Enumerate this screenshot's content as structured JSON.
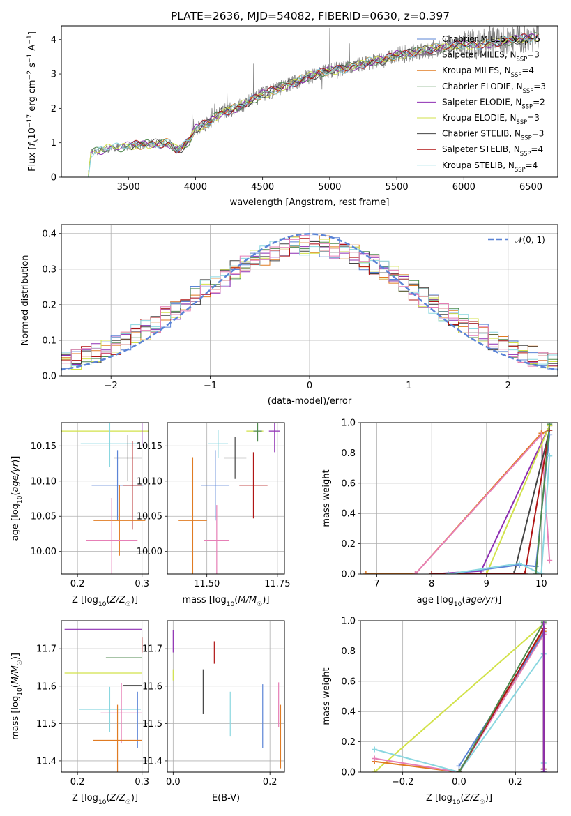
{
  "title": "PLATE=2636, MJD=54082, FIBERID=0630, z=0.397",
  "colors": {
    "grey": "#7f7f7f",
    "blue": "#5b84d6",
    "orange": "#e07b22",
    "green": "#4f8a4f",
    "purple": "#8e2fb3",
    "yellow": "#d2e24a",
    "dark": "#444444",
    "red": "#b01515",
    "cyan": "#8ad7e0",
    "pink": "#e67fb6"
  },
  "chart_data": [
    {
      "id": "spectrum",
      "type": "line",
      "xlabel": "wavelength [Angstrom, rest frame]",
      "ylabel": "Flux [f_λ10^-17 erg cm^-2 s^-1 A^-1]",
      "xlim": [
        3000,
        6700
      ],
      "ylim": [
        0,
        4.4
      ],
      "xticks": [
        "3500",
        "4000",
        "4500",
        "5000",
        "5500",
        "6000",
        "6500"
      ],
      "yticks": [
        "0",
        "1",
        "2",
        "3",
        "4"
      ],
      "grid": false,
      "legend_position": "right",
      "legend": [
        {
          "label": "Chabrier MILES, N_SSP=5",
          "color": "blue"
        },
        {
          "label": "Salpeter MILES, N_SSP=3",
          "color": "grey"
        },
        {
          "label": "Kroupa MILES, N_SSP=4",
          "color": "orange"
        },
        {
          "label": "Chabrier ELODIE, N_SSP=3",
          "color": "green"
        },
        {
          "label": "Salpeter ELODIE, N_SSP=2",
          "color": "purple"
        },
        {
          "label": "Kroupa ELODIE, N_SSP=3",
          "color": "yellow"
        },
        {
          "label": "Chabrier STELIB, N_SSP=3",
          "color": "dark"
        },
        {
          "label": "Salpeter STELIB, N_SSP=4",
          "color": "red"
        },
        {
          "label": "Kroupa STELIB, N_SSP=4",
          "color": "cyan"
        }
      ],
      "model_envelope": [
        [
          3200,
          0.0
        ],
        [
          3220,
          0.7
        ],
        [
          3300,
          0.8
        ],
        [
          3400,
          0.85
        ],
        [
          3500,
          0.9
        ],
        [
          3600,
          0.95
        ],
        [
          3700,
          0.97
        ],
        [
          3800,
          1.0
        ],
        [
          3850,
          0.8
        ],
        [
          3900,
          0.85
        ],
        [
          3950,
          1.05
        ],
        [
          4000,
          1.4
        ],
        [
          4100,
          1.6
        ],
        [
          4200,
          1.9
        ],
        [
          4300,
          2.0
        ],
        [
          4400,
          2.2
        ],
        [
          4500,
          2.4
        ],
        [
          4600,
          2.55
        ],
        [
          4700,
          2.7
        ],
        [
          4800,
          2.85
        ],
        [
          4900,
          3.0
        ],
        [
          5000,
          3.1
        ],
        [
          5100,
          3.15
        ],
        [
          5200,
          3.25
        ],
        [
          5300,
          3.35
        ],
        [
          5400,
          3.4
        ],
        [
          5500,
          3.55
        ],
        [
          5600,
          3.6
        ],
        [
          5700,
          3.7
        ],
        [
          5800,
          3.75
        ],
        [
          5900,
          3.8
        ],
        [
          6000,
          3.85
        ],
        [
          6100,
          3.85
        ],
        [
          6200,
          3.9
        ],
        [
          6300,
          3.95
        ],
        [
          6400,
          4.0
        ],
        [
          6500,
          4.05
        ],
        [
          6560,
          4.1
        ]
      ]
    },
    {
      "id": "residual-histogram",
      "type": "line",
      "xlabel": "(data-model)/error",
      "ylabel": "Normed distribution",
      "xlim": [
        -2.5,
        2.5
      ],
      "ylim": [
        0,
        0.425
      ],
      "xticks": [
        "−2",
        "−1",
        "0",
        "1",
        "2"
      ],
      "yticks": [
        "0.0",
        "0.1",
        "0.2",
        "0.3",
        "0.4"
      ],
      "grid": true,
      "legend_position": "top-right",
      "reference_label": "𝒩(0, 1)",
      "bin_width": 0.1,
      "series_colors": [
        "blue",
        "orange",
        "green",
        "purple",
        "yellow",
        "dark",
        "red",
        "cyan",
        "pink"
      ]
    },
    {
      "id": "age-vs-Z",
      "type": "scatter",
      "xlabel": "Z [log10(Z/Z☉)]",
      "ylabel": "age  [log10(age/yr)]",
      "xlim": [
        0.175,
        0.31
      ],
      "ylim": [
        9.968,
        10.183
      ],
      "xticks": [
        "0.2",
        "0.3"
      ],
      "yticks": [
        "10.00",
        "10.05",
        "10.10",
        "10.15"
      ],
      "points": [
        {
          "color": "yellow",
          "x": 0.285,
          "y": 10.171,
          "xerr": 0.11,
          "yerr": 0.0
        },
        {
          "color": "green",
          "x": 0.3,
          "y": 10.171,
          "xerr": 0.0,
          "yerr": 0.0
        },
        {
          "color": "cyan",
          "x": 0.25,
          "y": 10.153,
          "xerr": 0.045,
          "yerr": 0.033
        },
        {
          "color": "dark",
          "x": 0.278,
          "y": 10.133,
          "xerr": 0.022,
          "yerr": 0.033
        },
        {
          "color": "blue",
          "x": 0.262,
          "y": 10.094,
          "xerr": 0.04,
          "yerr": 0.05
        },
        {
          "color": "red",
          "x": 0.285,
          "y": 10.094,
          "xerr": 0.015,
          "yerr": 0.063
        },
        {
          "color": "orange",
          "x": 0.265,
          "y": 10.044,
          "xerr": 0.04,
          "yerr": 0.05
        },
        {
          "color": "pink",
          "x": 0.253,
          "y": 10.016,
          "xerr": 0.04,
          "yerr": 0.06
        },
        {
          "color": "purple",
          "x": 0.3,
          "y": 10.171,
          "xerr": 0.0,
          "yerr": 0.02
        }
      ]
    },
    {
      "id": "age-vs-mass",
      "type": "scatter",
      "xlabel": "mass [log10(M/M☉)]",
      "ylabel": "",
      "xlim": [
        11.36,
        11.775
      ],
      "ylim": [
        9.968,
        10.183
      ],
      "xticks": [
        "11.50",
        "11.75"
      ],
      "yticks": [
        "10.00",
        "10.05",
        "10.10",
        "10.15"
      ],
      "points": [
        {
          "color": "yellow",
          "x": 11.67,
          "y": 10.171,
          "xerr": 0.03,
          "yerr": 0.0
        },
        {
          "color": "green",
          "x": 11.68,
          "y": 10.171,
          "xerr": 0.015,
          "yerr": 0.015
        },
        {
          "color": "purple",
          "x": 11.74,
          "y": 10.171,
          "xerr": 0.02,
          "yerr": 0.03
        },
        {
          "color": "cyan",
          "x": 11.54,
          "y": 10.153,
          "xerr": 0.035,
          "yerr": 0.02
        },
        {
          "color": "dark",
          "x": 11.6,
          "y": 10.133,
          "xerr": 0.04,
          "yerr": 0.03
        },
        {
          "color": "blue",
          "x": 11.53,
          "y": 10.094,
          "xerr": 0.05,
          "yerr": 0.05
        },
        {
          "color": "red",
          "x": 11.665,
          "y": 10.094,
          "xerr": 0.05,
          "yerr": 0.047
        },
        {
          "color": "orange",
          "x": 11.45,
          "y": 10.044,
          "xerr": 0.05,
          "yerr": 0.09
        },
        {
          "color": "pink",
          "x": 11.535,
          "y": 10.016,
          "xerr": 0.045,
          "yerr": 0.05
        }
      ]
    },
    {
      "id": "mass-weight-vs-age",
      "type": "line",
      "xlabel": "age  [log10(age/yr)]",
      "ylabel": "mass weight",
      "xlim": [
        6.7,
        10.3
      ],
      "ylim": [
        0,
        1.0
      ],
      "xticks": [
        "7",
        "8",
        "9",
        "10"
      ],
      "yticks": [
        "0.0",
        "0.2",
        "0.4",
        "0.6",
        "0.8",
        "1.0"
      ],
      "grid": true,
      "series": [
        {
          "color": "orange",
          "x": [
            6.8,
            7.7,
            10.0,
            10.15
          ],
          "y": [
            0.0,
            0.0,
            0.93,
            0.95
          ]
        },
        {
          "color": "pink",
          "x": [
            7.7,
            10.0,
            10.15
          ],
          "y": [
            0.0,
            0.92,
            0.09
          ]
        },
        {
          "color": "purple",
          "x": [
            8.0,
            8.9,
            10.15
          ],
          "y": [
            0.0,
            0.02,
            0.98
          ]
        },
        {
          "color": "yellow",
          "x": [
            8.0,
            9.0,
            10.15
          ],
          "y": [
            0.0,
            0.0,
            0.98
          ]
        },
        {
          "color": "dark",
          "x": [
            8.0,
            9.5,
            10.15
          ],
          "y": [
            0.0,
            0.0,
            0.95
          ]
        },
        {
          "color": "red",
          "x": [
            8.0,
            9.7,
            10.15
          ],
          "y": [
            0.0,
            0.0,
            0.95
          ]
        },
        {
          "color": "blue",
          "x": [
            8.3,
            9.6,
            9.9,
            10.15
          ],
          "y": [
            0.0,
            0.06,
            0.05,
            0.92
          ]
        },
        {
          "color": "cyan",
          "x": [
            8.3,
            9.6,
            10.0,
            10.15
          ],
          "y": [
            0.0,
            0.07,
            0.0,
            0.78
          ]
        },
        {
          "color": "green",
          "x": [
            9.9,
            10.15
          ],
          "y": [
            0.0,
            0.99
          ]
        }
      ]
    },
    {
      "id": "mass-vs-Z",
      "type": "scatter",
      "xlabel": "Z [log10(Z/Z☉)]",
      "ylabel": "mass [log10(M/M☉)]",
      "xlim": [
        0.175,
        0.31
      ],
      "ylim": [
        11.37,
        11.775
      ],
      "xticks": [
        "0.2",
        "0.3"
      ],
      "yticks": [
        "11.4",
        "11.5",
        "11.6",
        "11.7"
      ],
      "points": [
        {
          "color": "purple",
          "x": 0.24,
          "y": 11.752,
          "xerr": 0.06,
          "yerr": 0.0
        },
        {
          "color": "red",
          "x": 0.3,
          "y": 11.71,
          "xerr": 0.0,
          "yerr": 0.02
        },
        {
          "color": "green",
          "x": 0.272,
          "y": 11.676,
          "xerr": 0.028,
          "yerr": 0.0
        },
        {
          "color": "yellow",
          "x": 0.24,
          "y": 11.635,
          "xerr": 0.06,
          "yerr": 0.0
        },
        {
          "color": "dark",
          "x": 0.285,
          "y": 11.602,
          "xerr": 0.015,
          "yerr": 0.0
        },
        {
          "color": "cyan",
          "x": 0.25,
          "y": 11.538,
          "xerr": 0.048,
          "yerr": 0.06
        },
        {
          "color": "pink",
          "x": 0.268,
          "y": 11.528,
          "xerr": 0.032,
          "yerr": 0.08
        },
        {
          "color": "blue",
          "x": 0.293,
          "y": 11.51,
          "xerr": 0.0,
          "yerr": 0.075
        },
        {
          "color": "orange",
          "x": 0.262,
          "y": 11.455,
          "xerr": 0.038,
          "yerr": 0.095
        }
      ]
    },
    {
      "id": "mass-vs-ebv",
      "type": "scatter",
      "xlabel": "E(B-V)",
      "ylabel": "",
      "xlim": [
        -0.012,
        0.23
      ],
      "ylim": [
        11.37,
        11.775
      ],
      "xticks": [
        "0.0",
        "0.2"
      ],
      "yticks": [
        "11.4",
        "11.5",
        "11.6",
        "11.7"
      ],
      "points": [
        {
          "color": "purple",
          "x": 0.0,
          "y": 11.72,
          "xerr": 0.0,
          "yerr": 0.03
        },
        {
          "color": "yellow",
          "x": 0.0,
          "y": 11.63,
          "xerr": 0.0,
          "yerr": 0.015
        },
        {
          "color": "red",
          "x": 0.085,
          "y": 11.69,
          "xerr": 0.0,
          "yerr": 0.03
        },
        {
          "color": "dark",
          "x": 0.062,
          "y": 11.585,
          "xerr": 0.0,
          "yerr": 0.06
        },
        {
          "color": "cyan",
          "x": 0.118,
          "y": 11.525,
          "xerr": 0.0,
          "yerr": 0.06
        },
        {
          "color": "blue",
          "x": 0.185,
          "y": 11.52,
          "xerr": 0.0,
          "yerr": 0.085
        },
        {
          "color": "pink",
          "x": 0.218,
          "y": 11.55,
          "xerr": 0.0,
          "yerr": 0.06
        },
        {
          "color": "orange",
          "x": 0.222,
          "y": 11.465,
          "xerr": 0.0,
          "yerr": 0.085
        }
      ]
    },
    {
      "id": "mass-weight-vs-Z",
      "type": "line",
      "xlabel": "Z [log10(Z/Z☉)]",
      "ylabel": "mass weight",
      "xlim": [
        -0.35,
        0.35
      ],
      "ylim": [
        0,
        1.0
      ],
      "xticks": [
        "−0.2",
        "0.0",
        "0.2"
      ],
      "yticks": [
        "0.0",
        "0.2",
        "0.4",
        "0.6",
        "0.8",
        "1.0"
      ],
      "grid": true,
      "series": [
        {
          "color": "yellow",
          "x": [
            -0.3,
            0.3
          ],
          "y": [
            0.0,
            0.98
          ]
        },
        {
          "color": "orange",
          "x": [
            -0.3,
            0.0,
            0.3
          ],
          "y": [
            0.07,
            0.0,
            0.93
          ]
        },
        {
          "color": "pink",
          "x": [
            -0.3,
            0.0,
            0.3
          ],
          "y": [
            0.09,
            0.0,
            0.91
          ]
        },
        {
          "color": "cyan",
          "x": [
            -0.3,
            0.0,
            0.3,
            0.3
          ],
          "y": [
            0.15,
            0.0,
            0.78,
            0.06
          ]
        },
        {
          "color": "blue",
          "x": [
            0.0,
            0.3,
            0.3
          ],
          "y": [
            0.04,
            0.92,
            0.0
          ]
        },
        {
          "color": "dark",
          "x": [
            0.0,
            0.3,
            0.3
          ],
          "y": [
            0.0,
            0.95,
            0.02
          ]
        },
        {
          "color": "red",
          "x": [
            0.0,
            0.3,
            0.3
          ],
          "y": [
            0.0,
            0.95,
            0.02
          ]
        },
        {
          "color": "green",
          "x": [
            0.0,
            0.3
          ],
          "y": [
            0.0,
            0.99
          ]
        },
        {
          "color": "purple",
          "x": [
            0.3,
            0.3
          ],
          "y": [
            0.98,
            0.0
          ]
        }
      ]
    }
  ]
}
